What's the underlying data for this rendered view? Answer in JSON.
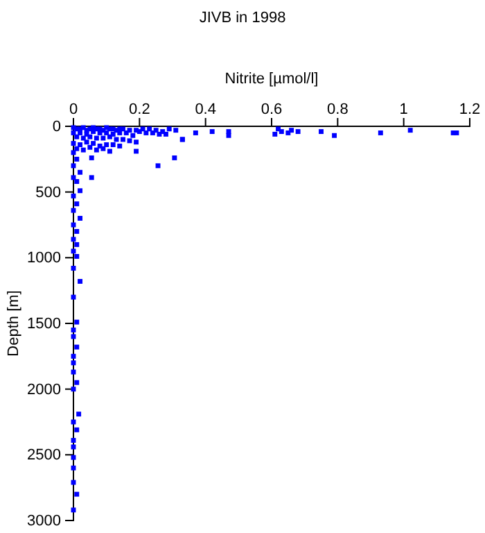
{
  "chart_data": {
    "type": "scatter",
    "title": "JIVB in 1998",
    "xlabel": "Nitrite [µmol/l]",
    "ylabel": "Depth [m]",
    "xlim": [
      0,
      1.2
    ],
    "xticks": [
      0,
      0.2,
      0.4,
      0.6,
      0.8,
      1,
      1.2
    ],
    "ylim": [
      3000,
      0
    ],
    "yticks": [
      0,
      500,
      1000,
      1500,
      2000,
      2500,
      3000
    ],
    "grid": false,
    "marker": "square",
    "series": [
      {
        "color": "#0000ff",
        "x": [
          0.0,
          0.01,
          0.02,
          0.03,
          0.04,
          0.05,
          0.06,
          0.07,
          0.08,
          0.09,
          0.1,
          0.11,
          0.12,
          0.13,
          0.14,
          0.15,
          0.17,
          0.19,
          0.21,
          0.23,
          0.25,
          0.27,
          0.29,
          0.31,
          0.0,
          0.02,
          0.04,
          0.06,
          0.08,
          0.1,
          0.12,
          0.14,
          0.16,
          0.18,
          0.2,
          0.22,
          0.24,
          0.26,
          0.28,
          0.01,
          0.03,
          0.05,
          0.07,
          0.09,
          0.11,
          0.13,
          0.15,
          0.17,
          0.19,
          0.0,
          0.02,
          0.04,
          0.06,
          0.08,
          0.1,
          0.12,
          0.14,
          0.01,
          0.03,
          0.05,
          0.07,
          0.09,
          0.11,
          0.33,
          0.37,
          0.42,
          0.47,
          0.47,
          0.62,
          0.63,
          0.65,
          0.66,
          0.68,
          0.61,
          0.75,
          0.79,
          0.93,
          1.02,
          1.15,
          1.16,
          0.33,
          0.19,
          0.306,
          0.256,
          0.055,
          0.055,
          0.0,
          0.01,
          0.0,
          0.02,
          0.0,
          0.01,
          0.02,
          0.0,
          0.01,
          0.0,
          0.02,
          0.0,
          0.01,
          0.0,
          0.01,
          0.0,
          0.01,
          0.0,
          0.02,
          0.0,
          0.01,
          0.0,
          0.0,
          0.01,
          0.0,
          0.0,
          0.0,
          0.01,
          0.0,
          0.016,
          0.0,
          0.01,
          0.0,
          0.0,
          0.0,
          0.0,
          0.0,
          0.01,
          0.0
        ],
        "values": [
          10,
          20,
          20,
          10,
          30,
          20,
          10,
          20,
          20,
          30,
          10,
          20,
          20,
          30,
          20,
          20,
          30,
          30,
          20,
          20,
          30,
          40,
          20,
          30,
          50,
          50,
          60,
          40,
          50,
          50,
          60,
          50,
          50,
          70,
          40,
          50,
          50,
          60,
          60,
          80,
          90,
          80,
          90,
          90,
          80,
          100,
          100,
          110,
          120,
          130,
          140,
          120,
          130,
          150,
          140,
          140,
          150,
          170,
          180,
          160,
          180,
          170,
          190,
          100,
          50,
          40,
          40,
          70,
          20,
          40,
          50,
          30,
          40,
          60,
          40,
          70,
          50,
          30,
          50,
          50,
          100,
          190,
          240,
          300,
          240,
          390,
          200,
          250,
          300,
          350,
          390,
          420,
          490,
          530,
          590,
          640,
          700,
          750,
          800,
          860,
          900,
          950,
          990,
          1080,
          1180,
          1300,
          1490,
          1550,
          1600,
          1680,
          1750,
          1800,
          1870,
          1950,
          2000,
          2190,
          2250,
          2310,
          2390,
          2440,
          2520,
          2600,
          2710,
          2800,
          2920
        ]
      }
    ]
  }
}
